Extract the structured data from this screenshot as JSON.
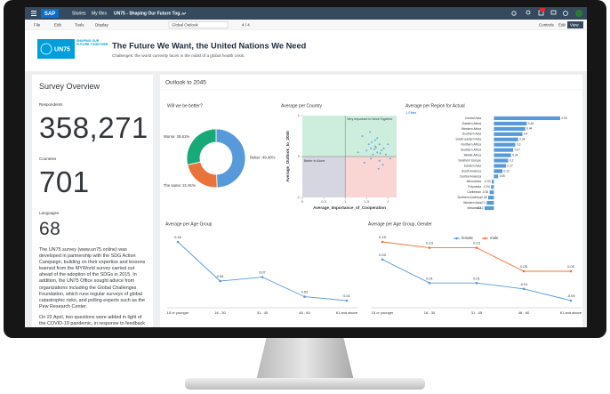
{
  "topbar": {
    "brand": "SAP",
    "app": "Stories",
    "files": "My files",
    "story": "UN75 - Shaping Our Future Tog..."
  },
  "toolbar": {
    "menus": [
      "File",
      "Edit",
      "Tools",
      "Display"
    ],
    "page": "Global Outlook",
    "pager": "4 / 4",
    "modes": [
      "Controls",
      "Edit",
      "View"
    ]
  },
  "header": {
    "logo": "UN75",
    "logo_sub": "SHAPING OUR FUTURE TOGETHER",
    "title": "The Future We Want, the United Nations We Need",
    "subtitle": "Challenges: the world currently faces in the midst of a global health crisis."
  },
  "overview": {
    "title": "Survey Overview",
    "stats": [
      {
        "label": "Respondents",
        "value": "358,271"
      },
      {
        "label": "Countries",
        "value": "701"
      },
      {
        "label": "Languages",
        "value": "68"
      }
    ],
    "paragraphs": [
      "The UN75 survey (www.un75.online) was developed in partnership with the SDG Action Campaign, building on their expertise and lessons learned from the MYWorld survey carried out ahead of the adoption of the SDGs in 2015. In addition, the UN75 Office sought advice from organizations including the Global Challenges Foundation, which runs regular surveys of global catastrophic risks, and polling experts such as the Pew Research Center.",
      "On 22 April, two questions were added in light of the COVID-19 pandemic, in response to feedback"
    ]
  },
  "section": "Outlook to 2045",
  "chart_data": [
    {
      "type": "pie",
      "title": "Will we be better?",
      "categories": [
        "Better",
        "The same",
        "Worse"
      ],
      "values": [
        49.48,
        21.91,
        28.61
      ],
      "value_labels": [
        "Better: 49.48%",
        "The same: 21.91%",
        "Worse: 28.61%"
      ],
      "colors": [
        "#5899da",
        "#e8743b",
        "#19a979"
      ]
    },
    {
      "type": "scatter",
      "title": "Average per Country",
      "x_label": "Average_Importance_of_Cooperation",
      "y_label": "Average_Outlook_to_2045",
      "annotations": [
        "Very important to Work Together",
        "Better in Alone"
      ],
      "quadrants": {
        "x": 1,
        "y": 0,
        "colors": [
          "#cdeedd",
          "#f9d5d3",
          "#d6d6e0"
        ]
      },
      "xlim": [
        0,
        2.2
      ],
      "xticks": [
        0,
        0.5,
        1,
        1.5,
        2
      ],
      "ylim": [
        -1,
        1
      ],
      "yticks": [
        -1,
        0,
        1
      ],
      "color": "#5899da",
      "x": [
        1.6,
        1.7,
        1.75,
        1.8,
        1.65,
        1.85,
        1.9,
        1.7,
        1.55,
        1.6,
        1.8,
        1.75,
        1.95,
        1.5,
        1.68,
        1.72,
        1.82,
        1.62,
        1.88,
        1.4,
        2.0,
        1.3,
        1.78,
        1.58,
        2.05,
        1.45
      ],
      "values": [
        0.2,
        0.25,
        0.1,
        0.3,
        0.05,
        0.15,
        0.2,
        0.4,
        0.3,
        -0.05,
        -0.1,
        0.45,
        0.05,
        0.15,
        0.18,
        0.22,
        0.08,
        0.35,
        -0.2,
        0.5,
        0.3,
        0.1,
        -0.3,
        0.6,
        -0.05,
        -0.15
      ]
    },
    {
      "type": "hbar",
      "title": "Average per Region for Actual",
      "filter": "1 Filter",
      "color": "#5899da",
      "categories": [
        "Central Asia",
        "Eastern Africa",
        "Western Africa",
        "Southern Asia",
        "South-eastern Asia",
        "Northern Africa",
        "Southern Africa",
        "Middle Africa",
        "Southern Europe",
        "Eastern Asia",
        "South America",
        "Central America",
        "Micronesia",
        "Polynesia",
        "Caribbean",
        "Northern America",
        "Western Asia",
        "Melanesia"
      ],
      "values": [
        0.93,
        0.46,
        0.44,
        0.4,
        0.34,
        0.3,
        0.27,
        0.24,
        0.2,
        0.17,
        0.12,
        0.06,
        -0.03,
        -0.04,
        -0.06,
        -0.08,
        -0.1,
        -0.13
      ]
    },
    {
      "type": "line",
      "title": "Average per Age Group",
      "categories": [
        "15 or younger",
        "16 - 30",
        "31 - 45",
        "46 - 60",
        "61 and above"
      ],
      "series": [
        {
          "name": null,
          "color": "#5899da",
          "values": [
            0.16,
            0.06,
            0.07,
            0.02,
            0.01
          ]
        }
      ]
    },
    {
      "type": "line",
      "title": "Average per Age Group, Gender",
      "categories": [
        "15 or younger",
        "16 - 30",
        "31 - 45",
        "46 - 60",
        "61 and above"
      ],
      "series": [
        {
          "name": "female",
          "color": "#5899da",
          "values": [
            0.09,
            0.01,
            0.01,
            -0.01,
            -0.05
          ]
        },
        {
          "name": "male",
          "color": "#e8743b",
          "values": [
            0.15,
            0.13,
            0.13,
            0.05,
            0.05
          ]
        }
      ]
    }
  ]
}
